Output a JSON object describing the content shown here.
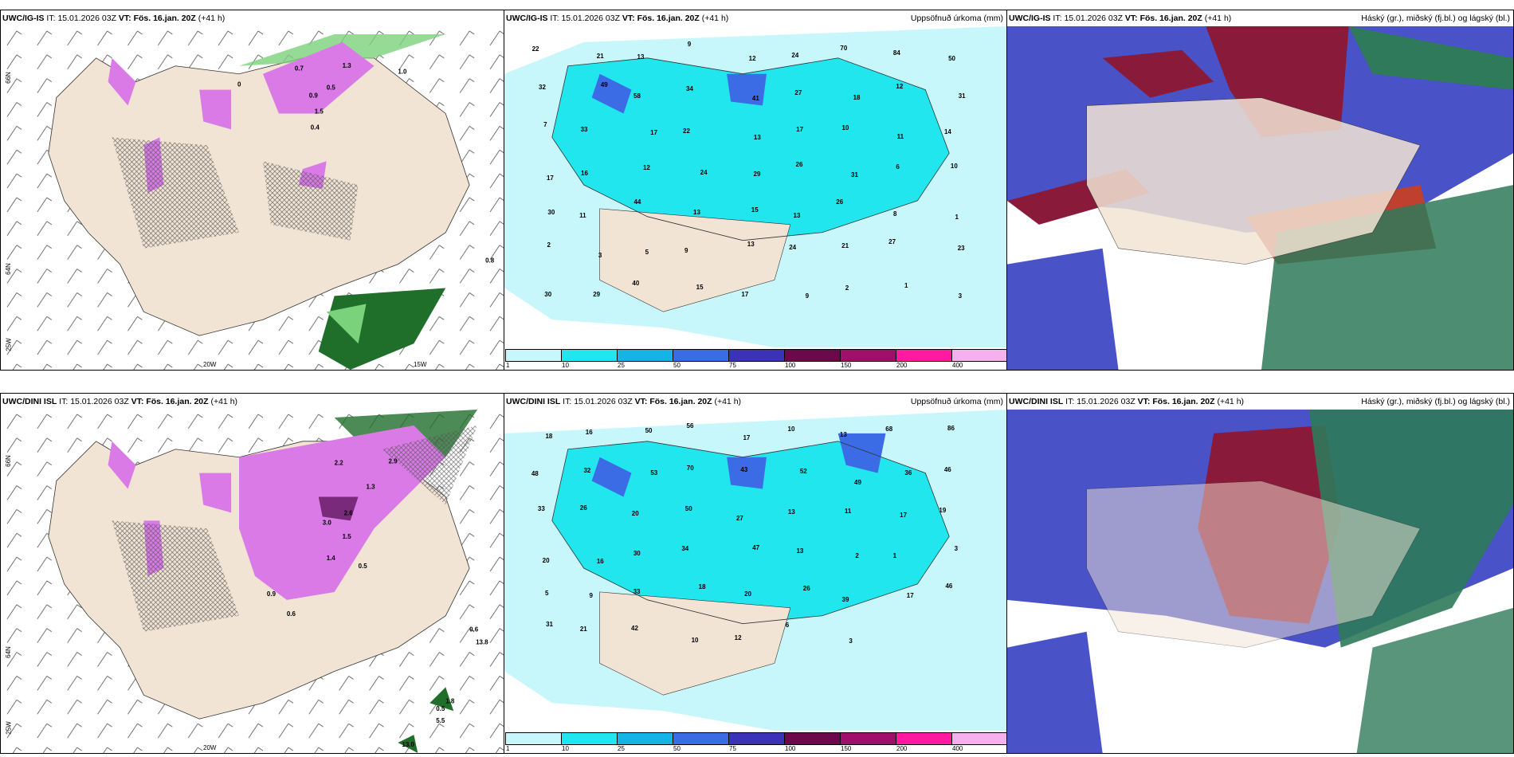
{
  "panels": [
    {
      "model": "UWC/IG-IS",
      "it_label": "IT:",
      "it": "15.01.2026 03Z",
      "vt_label": "VT:",
      "vt": "Fös. 16.jan. 20Z",
      "lead": "(+41 h)",
      "right_title": ""
    },
    {
      "model": "UWC/IG-IS",
      "it_label": "IT:",
      "it": "15.01.2026 03Z",
      "vt_label": "VT:",
      "vt": "Fös. 16.jan. 20Z",
      "lead": "(+41 h)",
      "right_title": "Uppsöfnuð úrkoma (mm)"
    },
    {
      "model": "UWC/IG-IS",
      "it_label": "IT:",
      "it": "15.01.2026 03Z",
      "vt_label": "VT:",
      "vt": "Fös. 16.jan. 20Z",
      "lead": "(+41 h)",
      "right_title": "Háský (gr.), miðský (fj.bl.) og lágský (bl.)"
    },
    {
      "model": "UWC/DINI ISL",
      "it_label": "IT:",
      "it": "15.01.2026 03Z",
      "vt_label": "VT:",
      "vt": "Fös. 16.jan. 20Z",
      "lead": "(+41 h)",
      "right_title": ""
    },
    {
      "model": "UWC/DINI ISL",
      "it_label": "IT:",
      "it": "15.01.2026 03Z",
      "vt_label": "VT:",
      "vt": "Fös. 16.jan. 20Z",
      "lead": "(+41 h)",
      "right_title": "Uppsöfnuð úrkoma (mm)"
    },
    {
      "model": "UWC/DINI ISL",
      "it_label": "IT:",
      "it": "15.01.2026 03Z",
      "vt_label": "VT:",
      "vt": "Fös. 16.jan. 20Z",
      "lead": "(+41 h)",
      "right_title": "Háský (gr.), miðský (fj.bl.) og lágský (bl.)"
    }
  ],
  "axis_labels": {
    "lat66": "66N",
    "lat64": "64N",
    "lon25": "25W",
    "lon20": "20W",
    "lon15": "15W"
  },
  "colorbar": {
    "ticks": [
      "1",
      "10",
      "25",
      "50",
      "75",
      "100",
      "150",
      "200",
      "400"
    ],
    "colors": [
      "#c8f7fb",
      "#22e6ee",
      "#14b4e6",
      "#3c6be6",
      "#3b32b8",
      "#6a0a4a",
      "#a0106a",
      "#ff1aa0",
      "#f5b0ee"
    ]
  },
  "precip_top": [
    "22",
    "21",
    "13",
    "9",
    "12",
    "24",
    "70",
    "84",
    "50",
    "32",
    "49",
    "58",
    "34",
    "41",
    "27",
    "18",
    "12",
    "31",
    "7",
    "33",
    "17",
    "22",
    "13",
    "17",
    "10",
    "11",
    "14",
    "17",
    "16",
    "12",
    "24",
    "29",
    "26",
    "31",
    "6",
    "10",
    "30",
    "11",
    "44",
    "13",
    "15",
    "13",
    "26",
    "8",
    "1",
    "2",
    "3",
    "5",
    "9",
    "13",
    "24",
    "21",
    "27",
    "23",
    "30",
    "29",
    "40",
    "15",
    "17",
    "9",
    "2",
    "1",
    "3"
  ],
  "precip_bottom": [
    "18",
    "16",
    "50",
    "56",
    "17",
    "10",
    "13",
    "68",
    "86",
    "48",
    "32",
    "53",
    "70",
    "43",
    "52",
    "49",
    "36",
    "46",
    "33",
    "26",
    "20",
    "50",
    "27",
    "13",
    "11",
    "17",
    "19",
    "20",
    "16",
    "30",
    "34",
    "47",
    "13",
    "2",
    "1",
    "3",
    "5",
    "9",
    "33",
    "18",
    "20",
    "26",
    "39",
    "17",
    "46",
    "31",
    "21",
    "42",
    "10",
    "12",
    "6",
    "3"
  ],
  "snow_top": [
    "0",
    "0.7",
    "0.9",
    "1.3",
    "1.5",
    "0.5",
    "0.4",
    "1.0",
    "0.8"
  ],
  "snow_bottom": [
    "2.6",
    "3.0",
    "1.5",
    "1.3",
    "2.2",
    "2.9",
    "0.9",
    "0.6",
    "1.4",
    "0.5",
    "0.6",
    "1.8",
    "0.5",
    "5.5",
    "13.8",
    "13.0"
  ],
  "colors": {
    "land": "#f2e4d4",
    "precip_light": "#c8f7fb",
    "snow_magenta": "#d97ae6",
    "snow_dark": "#7a2a7a",
    "green": "#7ad27a",
    "dark_green": "#1f6e2a",
    "cloud_blue": "#4a52c8",
    "cloud_red": "#8a1a3a",
    "cloud_green": "#2e7a5a"
  }
}
